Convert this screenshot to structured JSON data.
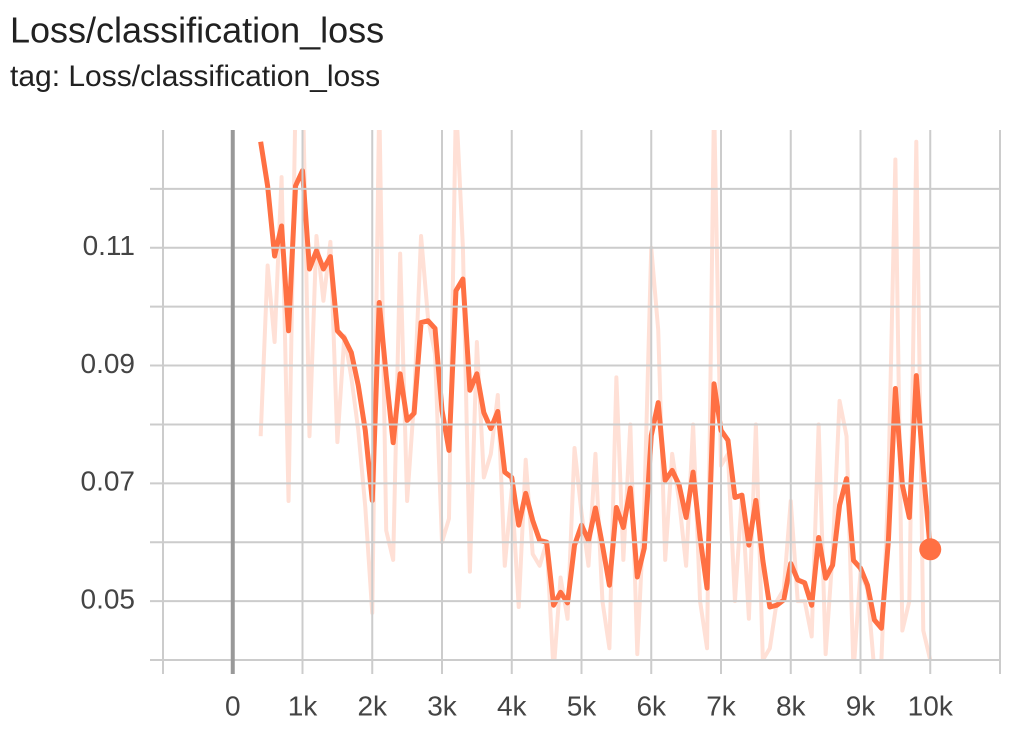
{
  "chart_data": {
    "type": "line",
    "title": "Loss/classification_loss",
    "subtitle": "tag: Loss/classification_loss",
    "x": [
      400,
      500,
      600,
      700,
      800,
      900,
      1000,
      1100,
      1200,
      1300,
      1400,
      1500,
      1600,
      1700,
      1800,
      1900,
      2000,
      2100,
      2200,
      2300,
      2400,
      2500,
      2600,
      2700,
      2800,
      2900,
      3000,
      3100,
      3200,
      3300,
      3400,
      3500,
      3600,
      3700,
      3800,
      3900,
      4000,
      4100,
      4200,
      4300,
      4400,
      4500,
      4600,
      4700,
      4800,
      4900,
      5000,
      5100,
      5200,
      5300,
      5400,
      5500,
      5600,
      5700,
      5800,
      5900,
      6000,
      6100,
      6200,
      6300,
      6400,
      6500,
      6600,
      6700,
      6800,
      6900,
      7000,
      7100,
      7200,
      7300,
      7400,
      7500,
      7600,
      7700,
      7800,
      7900,
      8000,
      8100,
      8200,
      8300,
      8400,
      8500,
      8600,
      8700,
      8800,
      8900,
      9000,
      9100,
      9200,
      9300,
      9400,
      9500,
      9600,
      9700,
      9800,
      9900,
      10000
    ],
    "series": [
      {
        "color": "#ff7043",
        "opacity": 0.22,
        "width": 4,
        "values": [
          0.078,
          0.107,
          0.094,
          0.122,
          0.067,
          0.135,
          0.14,
          0.078,
          0.112,
          0.101,
          0.111,
          0.077,
          0.095,
          0.088,
          0.079,
          0.066,
          0.048,
          0.135,
          0.062,
          0.057,
          0.109,
          0.067,
          0.084,
          0.112,
          0.098,
          0.092,
          0.06,
          0.064,
          0.135,
          0.11,
          0.055,
          0.094,
          0.071,
          0.075,
          0.085,
          0.056,
          0.069,
          0.049,
          0.074,
          0.058,
          0.056,
          0.06,
          0.038,
          0.054,
          0.047,
          0.076,
          0.065,
          0.056,
          0.075,
          0.05,
          0.042,
          0.088,
          0.057,
          0.08,
          0.041,
          0.066,
          0.11,
          0.096,
          0.057,
          0.075,
          0.067,
          0.056,
          0.08,
          0.05,
          0.042,
          0.135,
          0.073,
          0.075,
          0.05,
          0.068,
          0.047,
          0.08,
          0.04,
          0.042,
          0.05,
          0.052,
          0.067,
          0.05,
          0.05,
          0.044,
          0.08,
          0.041,
          0.058,
          0.084,
          0.078,
          0.038,
          0.055,
          0.052,
          0.038,
          0.04,
          0.07,
          0.125,
          0.045,
          0.05,
          0.128,
          0.045,
          0.04
        ]
      },
      {
        "color": "#ff7043",
        "opacity": 1,
        "width": 5,
        "values": [
          0.128,
          0.1205,
          0.1086,
          0.1137,
          0.0959,
          0.1205,
          0.1231,
          0.1064,
          0.1095,
          0.1064,
          0.1085,
          0.0959,
          0.0946,
          0.0922,
          0.0866,
          0.079,
          0.0671,
          0.1007,
          0.0883,
          0.0769,
          0.0886,
          0.0807,
          0.0819,
          0.0973,
          0.0976,
          0.0963,
          0.0824,
          0.0756,
          0.1027,
          0.1047,
          0.0858,
          0.0886,
          0.082,
          0.0793,
          0.0822,
          0.0719,
          0.071,
          0.0629,
          0.0683,
          0.0637,
          0.0603,
          0.06,
          0.0493,
          0.0515,
          0.0497,
          0.0595,
          0.0629,
          0.0603,
          0.0658,
          0.0595,
          0.0527,
          0.0659,
          0.0625,
          0.0692,
          0.0541,
          0.059,
          0.0781,
          0.0837,
          0.0705,
          0.0722,
          0.0697,
          0.0642,
          0.0719,
          0.0608,
          0.0522,
          0.0869,
          0.079,
          0.0773,
          0.0676,
          0.068,
          0.0595,
          0.0671,
          0.0569,
          0.049,
          0.0493,
          0.0502,
          0.0564,
          0.0536,
          0.0531,
          0.0493,
          0.0608,
          0.0539,
          0.0561,
          0.0663,
          0.0708,
          0.0569,
          0.0556,
          0.0527,
          0.0468,
          0.0454,
          0.0603,
          0.0861,
          0.0697,
          0.0642,
          0.0883,
          0.0722,
          0.0588
        ]
      }
    ],
    "xlim": [
      -1000,
      11000
    ],
    "ylim": [
      0.04,
      0.13
    ],
    "xticks": [
      0,
      {
        "value": 1000,
        "label": "1k"
      },
      {
        "value": 2000,
        "label": "2k"
      },
      {
        "value": 3000,
        "label": "3k"
      },
      {
        "value": 4000,
        "label": "4k"
      },
      {
        "value": 5000,
        "label": "5k"
      },
      {
        "value": 6000,
        "label": "6k"
      },
      {
        "value": 7000,
        "label": "7k"
      },
      {
        "value": 8000,
        "label": "8k"
      },
      {
        "value": 9000,
        "label": "9k"
      },
      {
        "value": 10000,
        "label": "10k"
      }
    ],
    "xgrid": [
      -1000,
      0,
      1000,
      2000,
      3000,
      4000,
      5000,
      6000,
      7000,
      8000,
      9000,
      10000,
      11000
    ],
    "yticks": [
      0.05,
      0.07,
      0.09,
      0.11
    ],
    "ygrid": [
      0.04,
      0.05,
      0.06,
      0.07,
      0.08,
      0.09,
      0.1,
      0.11,
      0.12
    ],
    "grid": true
  }
}
